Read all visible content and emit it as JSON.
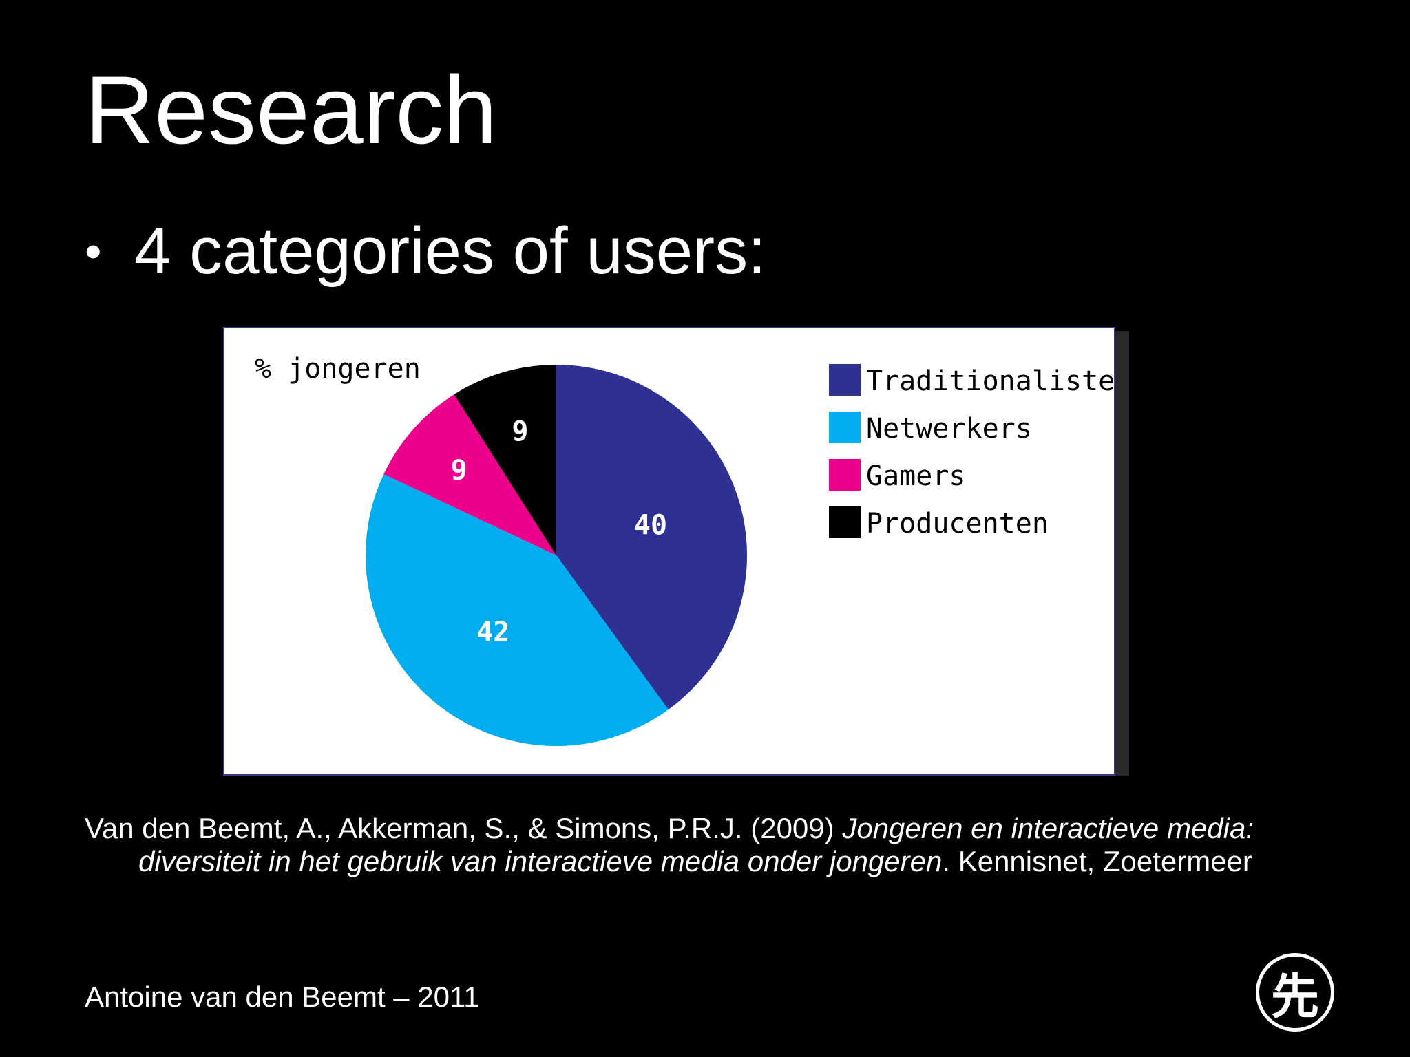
{
  "slide": {
    "title": "Research",
    "bullet": "4 categories of users:",
    "citation": {
      "plain1": "Van den Beemt, A., Akkerman, S., & Simons, P.R.J. (2009) ",
      "italic1": "Jongeren en interactieve media:",
      "italic2": "diversiteit in het gebruik van interactieve media onder jongeren",
      "plain2": ". Kennisnet, Zoetermeer"
    },
    "footer": "Antoine van den Beemt  – 2011",
    "logo_glyph": "先"
  },
  "chart_data": {
    "type": "pie",
    "title": "% jongeren",
    "labels": [
      "Traditionalisten",
      "Netwerkers",
      "Gamers",
      "Producenten"
    ],
    "values": [
      40,
      42,
      9,
      9
    ],
    "colors": [
      "#2e3192",
      "#00aeef",
      "#ec008c",
      "#000000"
    ],
    "legend_position": "right",
    "start_angle_deg": 0,
    "direction": "clockwise"
  }
}
